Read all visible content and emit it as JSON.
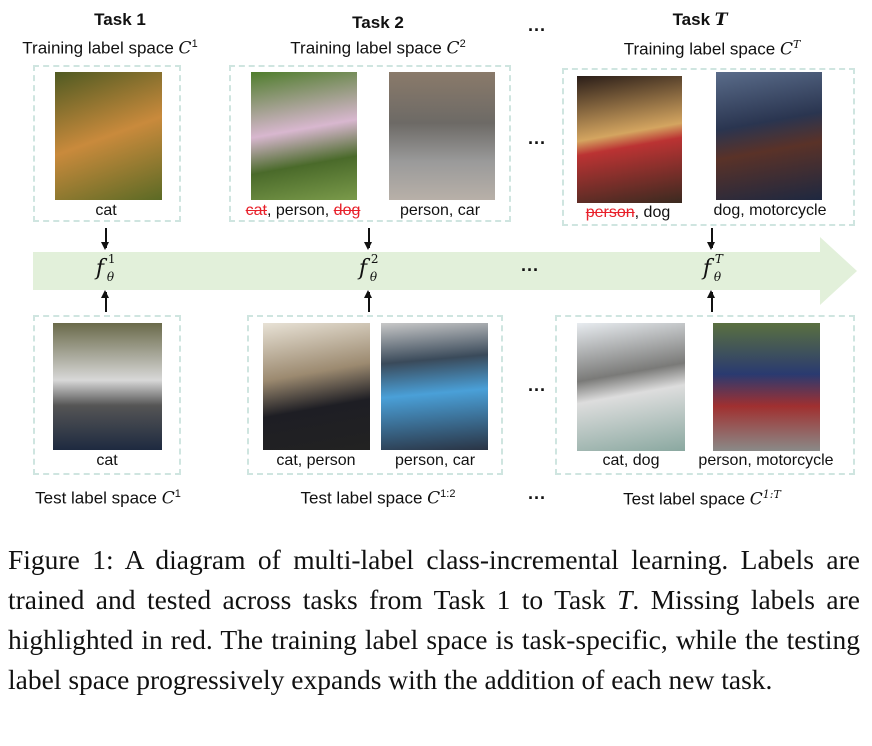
{
  "tasks": [
    {
      "title": "Task 1",
      "train_space": "Training label space ",
      "train_sup": "1",
      "test_space": "Test label space ",
      "test_sup": "1",
      "f_sup": "1"
    },
    {
      "title": "Task 2",
      "train_space": "Training label space ",
      "train_sup": "2",
      "test_space": "Test label space ",
      "test_sup": "1:2",
      "f_sup": "2"
    },
    {
      "title_prefix": "Task ",
      "title_var": "T",
      "train_space": "Training label space ",
      "train_sup": "T",
      "test_space": "Test label space ",
      "test_sup": "1:T",
      "f_sup": "T"
    }
  ],
  "symbols": {
    "C": "C",
    "f": "f",
    "theta": "θ",
    "ellipsis": "···",
    "sep": ", "
  },
  "train_images": [
    {
      "labels": "cat"
    },
    {
      "missing1": "cat",
      "mid": ", person, ",
      "missing2": "dog"
    },
    {
      "labels": "person, car"
    },
    {
      "missing1": "person",
      "mid": ", dog"
    },
    {
      "labels": "dog, motorcycle"
    }
  ],
  "test_images": [
    {
      "labels": "cat"
    },
    {
      "labels": "cat, person"
    },
    {
      "labels": "person, car"
    },
    {
      "labels": "cat, dog"
    },
    {
      "labels": "person, motorcycle"
    }
  ],
  "colors": {
    "missing_label": "#e8202a",
    "timeline_arrow": "#e2f0da",
    "dashed_box": "#cfe5e0"
  },
  "caption": {
    "p1": "Figure 1: A diagram of multi-label class-incremental learning. Labels are trained and tested across tasks from Task 1 to Task ",
    "var": "T",
    "p2": ". Missing labels are highlighted in red. The training label space is task-specific, while the testing label space progressively expands with the addition of each new task."
  }
}
